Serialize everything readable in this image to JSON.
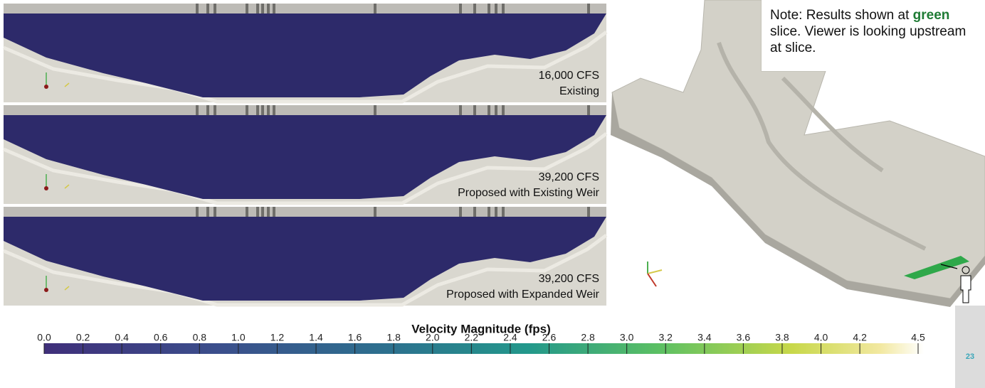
{
  "panels": [
    {
      "flow": "16,000 CFS",
      "scenario": "Existing"
    },
    {
      "flow": "39,200 CFS",
      "scenario": "Proposed with Existing Weir"
    },
    {
      "flow": "39,200 CFS",
      "scenario": "Proposed with Expanded Weir"
    }
  ],
  "note": {
    "before": "Note: Results shown at",
    "highlight": "green",
    "after": "slice. Viewer is looking upstream at slice."
  },
  "colorbar": {
    "title": "Velocity Magnitude (fps)",
    "ticks": [
      {
        "value": 0,
        "label": "0.0"
      },
      0.2,
      0.4,
      0.6,
      0.8,
      {
        "value": 1,
        "label": "1.0"
      },
      1.2,
      1.4,
      1.6,
      1.8,
      {
        "value": 2,
        "label": "2.0"
      },
      2.2,
      2.4,
      2.6,
      2.8,
      {
        "value": 3,
        "label": "3.0"
      },
      3.2,
      3.4,
      3.6,
      3.8,
      {
        "value": 4,
        "label": "4.0"
      },
      4.2,
      4.5
    ]
  },
  "page_number": "23"
}
